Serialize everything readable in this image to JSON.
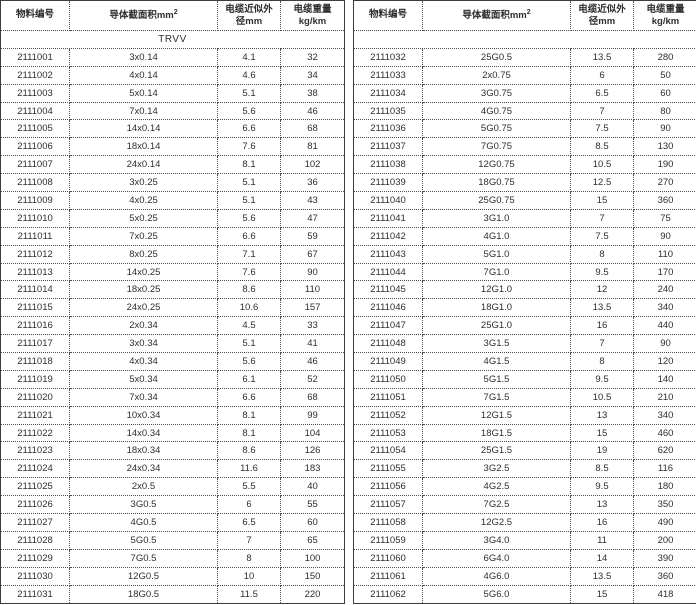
{
  "colors": {
    "text": "#2e2e2e",
    "grid": "#4d4d4d",
    "background": "#ffffff"
  },
  "header": {
    "material": "物料编号",
    "section": "导体截面积mm",
    "section_sup": "2",
    "diameter_line1": "电缆近似外",
    "diameter_line2": "径mm",
    "weight_line1": "电缆重量",
    "weight_line2": "kg/km"
  },
  "tables": {
    "left": {
      "group_label": "TRVV",
      "rows": [
        [
          "2111001",
          "3x0.14",
          "4.1",
          "32"
        ],
        [
          "2111002",
          "4x0.14",
          "4.6",
          "34"
        ],
        [
          "2111003",
          "5x0.14",
          "5.1",
          "38"
        ],
        [
          "2111004",
          "7x0.14",
          "5.6",
          "46"
        ],
        [
          "2111005",
          "14x0.14",
          "6.6",
          "68"
        ],
        [
          "2111006",
          "18x0.14",
          "7.6",
          "81"
        ],
        [
          "2111007",
          "24x0.14",
          "8.1",
          "102"
        ],
        [
          "2111008",
          "3x0.25",
          "5.1",
          "36"
        ],
        [
          "2111009",
          "4x0.25",
          "5.1",
          "43"
        ],
        [
          "2111010",
          "5x0.25",
          "5.6",
          "47"
        ],
        [
          "2111011",
          "7x0.25",
          "6.6",
          "59"
        ],
        [
          "2111012",
          "8x0.25",
          "7.1",
          "67"
        ],
        [
          "2111013",
          "14x0.25",
          "7.6",
          "90"
        ],
        [
          "2111014",
          "18x0.25",
          "8.6",
          "110"
        ],
        [
          "2111015",
          "24x0.25",
          "10.6",
          "157"
        ],
        [
          "2111016",
          "2x0.34",
          "4.5",
          "33"
        ],
        [
          "2111017",
          "3x0.34",
          "5.1",
          "41"
        ],
        [
          "2111018",
          "4x0.34",
          "5.6",
          "46"
        ],
        [
          "2111019",
          "5x0.34",
          "6.1",
          "52"
        ],
        [
          "2111020",
          "7x0.34",
          "6.6",
          "68"
        ],
        [
          "2111021",
          "10x0.34",
          "8.1",
          "99"
        ],
        [
          "2111022",
          "14x0.34",
          "8.1",
          "104"
        ],
        [
          "2111023",
          "18x0.34",
          "8.6",
          "126"
        ],
        [
          "2111024",
          "24x0.34",
          "11.6",
          "183"
        ],
        [
          "2111025",
          "2x0.5",
          "5.5",
          "40"
        ],
        [
          "2111026",
          "3G0.5",
          "6",
          "55"
        ],
        [
          "2111027",
          "4G0.5",
          "6.5",
          "60"
        ],
        [
          "2111028",
          "5G0.5",
          "7",
          "65"
        ],
        [
          "2111029",
          "7G0.5",
          "8",
          "100"
        ],
        [
          "2111030",
          "12G0.5",
          "10",
          "150"
        ],
        [
          "2111031",
          "18G0.5",
          "11.5",
          "220"
        ]
      ]
    },
    "right": {
      "group_label": "",
      "rows": [
        [
          "2111032",
          "25G0.5",
          "13.5",
          "280"
        ],
        [
          "2111033",
          "2x0.75",
          "6",
          "50"
        ],
        [
          "2111034",
          "3G0.75",
          "6.5",
          "60"
        ],
        [
          "2111035",
          "4G0.75",
          "7",
          "80"
        ],
        [
          "2111036",
          "5G0.75",
          "7.5",
          "90"
        ],
        [
          "2111037",
          "7G0.75",
          "8.5",
          "130"
        ],
        [
          "2111038",
          "12G0.75",
          "10.5",
          "190"
        ],
        [
          "2111039",
          "18G0.75",
          "12.5",
          "270"
        ],
        [
          "2111040",
          "25G0.75",
          "15",
          "360"
        ],
        [
          "2111041",
          "3G1.0",
          "7",
          "75"
        ],
        [
          "2111042",
          "4G1.0",
          "7.5",
          "90"
        ],
        [
          "2111043",
          "5G1.0",
          "8",
          "110"
        ],
        [
          "2111044",
          "7G1.0",
          "9.5",
          "170"
        ],
        [
          "2111045",
          "12G1.0",
          "12",
          "240"
        ],
        [
          "2111046",
          "18G1.0",
          "13.5",
          "340"
        ],
        [
          "2111047",
          "25G1.0",
          "16",
          "440"
        ],
        [
          "2111048",
          "3G1.5",
          "7",
          "90"
        ],
        [
          "2111049",
          "4G1.5",
          "8",
          "120"
        ],
        [
          "2111050",
          "5G1.5",
          "9.5",
          "140"
        ],
        [
          "2111051",
          "7G1.5",
          "10.5",
          "210"
        ],
        [
          "2111052",
          "12G1.5",
          "13",
          "340"
        ],
        [
          "2111053",
          "18G1.5",
          "15",
          "460"
        ],
        [
          "2111054",
          "25G1.5",
          "19",
          "620"
        ],
        [
          "2111055",
          "3G2.5",
          "8.5",
          "116"
        ],
        [
          "2111056",
          "4G2.5",
          "9.5",
          "180"
        ],
        [
          "2111057",
          "7G2.5",
          "13",
          "350"
        ],
        [
          "2111058",
          "12G2.5",
          "16",
          "490"
        ],
        [
          "2111059",
          "3G4.0",
          "11",
          "200"
        ],
        [
          "2111060",
          "6G4.0",
          "14",
          "390"
        ],
        [
          "2111061",
          "4G6.0",
          "13.5",
          "360"
        ],
        [
          "2111062",
          "5G6.0",
          "15",
          "418"
        ]
      ]
    }
  }
}
